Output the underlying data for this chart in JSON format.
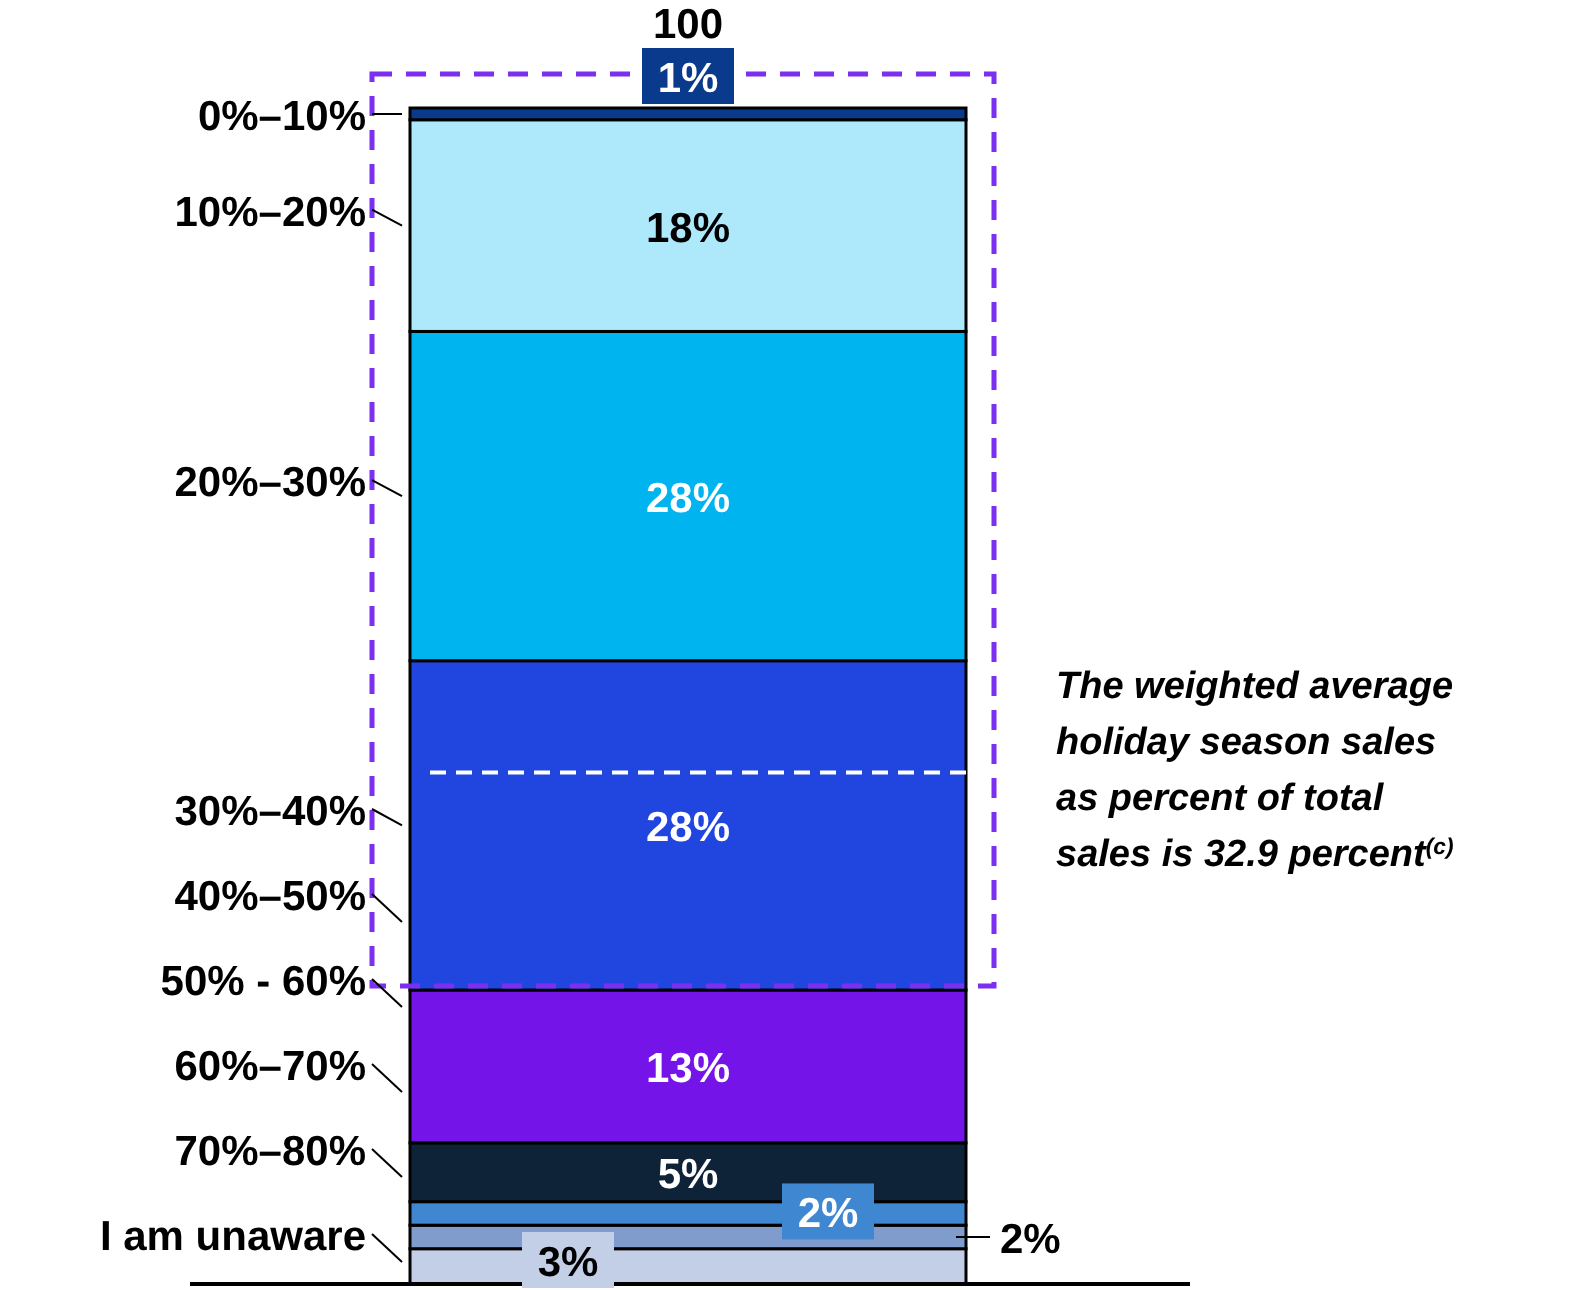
{
  "chart_data": {
    "type": "bar",
    "stacked": true,
    "categories": [
      null
    ],
    "legend": "left",
    "series": [
      {
        "name": "I am unaware",
        "color": "#c3cfe6",
        "values": [
          3
        ],
        "value_labels": [
          "3%"
        ]
      },
      {
        "name": "70%–80%",
        "color": "#7f9ccc",
        "values": [
          2
        ],
        "value_labels": [
          "2%"
        ]
      },
      {
        "name": "60%–70%",
        "color": "#3f87d0",
        "values": [
          2
        ],
        "value_labels": [
          "2%"
        ]
      },
      {
        "name": "50% - 60%",
        "color": "#0e2238",
        "values": [
          5
        ],
        "value_labels": [
          "5%"
        ]
      },
      {
        "name": "40%–50%",
        "color": "#7414e8",
        "values": [
          13
        ],
        "value_labels": [
          "13%"
        ]
      },
      {
        "name": "30%–40%",
        "color": "#2146e0",
        "values": [
          28
        ],
        "value_labels": [
          "28%"
        ]
      },
      {
        "name": "20%–30%",
        "color": "#00b4f0",
        "values": [
          28
        ],
        "value_labels": [
          "28%"
        ]
      },
      {
        "name": "10%–20%",
        "color": "#aee8fb",
        "values": [
          18
        ],
        "value_labels": [
          "18%"
        ]
      },
      {
        "name": "0%–10%",
        "color": "#0a3a8c",
        "values": [
          1
        ],
        "value_labels": [
          "1%"
        ]
      }
    ],
    "totals": [
      "100"
    ],
    "ref_lines": [
      {
        "axis": "y",
        "value": 43.5,
        "color": "#ffffff",
        "line_style": "dashed"
      }
    ],
    "annotations": [
      "The weighted average holiday season sales as percent of total sales is 32.9 percent$^{(c)}$"
    ]
  }
}
